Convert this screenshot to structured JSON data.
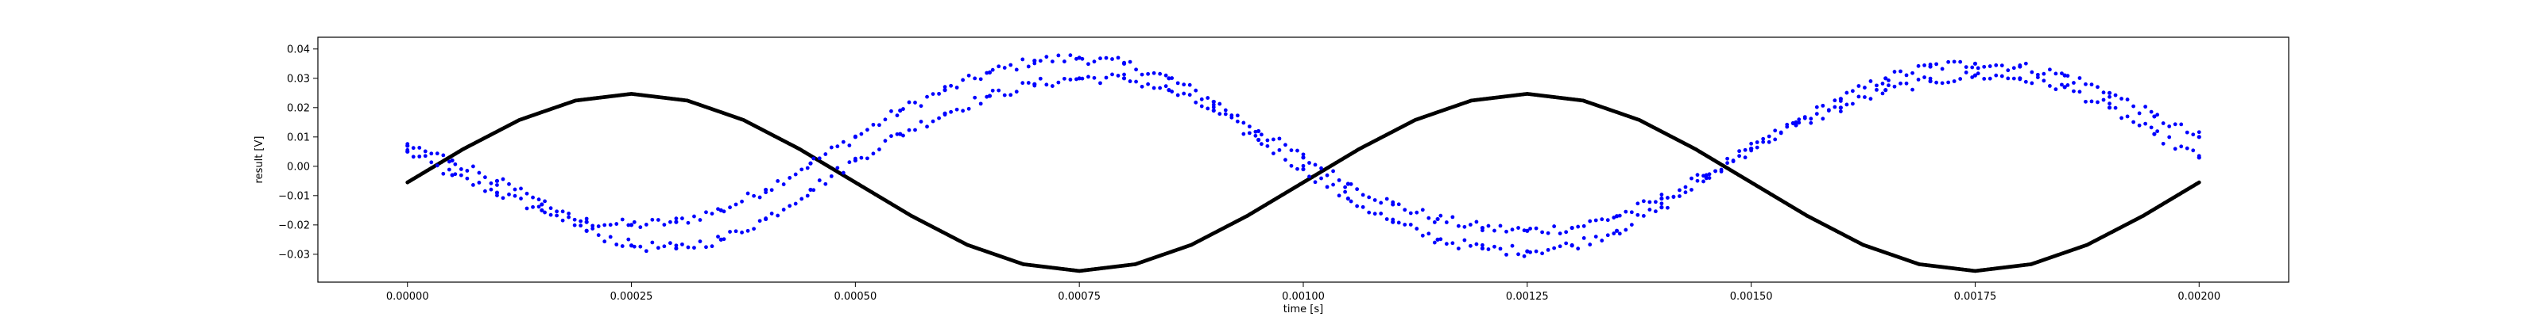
{
  "chart_data": {
    "type": "scatter",
    "title": "",
    "xlabel": "time [s]",
    "ylabel": "result [V]",
    "xlim": [
      -0.0001,
      0.0021
    ],
    "ylim": [
      -0.0395,
      0.044
    ],
    "grid": false,
    "legend": "none",
    "x_ticks": [
      {
        "value": 0.0,
        "label": "0.00000"
      },
      {
        "value": 0.00025,
        "label": "0.00025"
      },
      {
        "value": 0.0005,
        "label": "0.00050"
      },
      {
        "value": 0.00075,
        "label": "0.00075"
      },
      {
        "value": 0.001,
        "label": "0.00100"
      },
      {
        "value": 0.00125,
        "label": "0.00125"
      },
      {
        "value": 0.0015,
        "label": "0.00150"
      },
      {
        "value": 0.00175,
        "label": "0.00175"
      },
      {
        "value": 0.002,
        "label": "0.00200"
      }
    ],
    "y_ticks": [
      {
        "value": 0.04,
        "label": "0.04"
      },
      {
        "value": 0.03,
        "label": "0.03"
      },
      {
        "value": 0.02,
        "label": "0.02"
      },
      {
        "value": 0.01,
        "label": "0.01"
      },
      {
        "value": 0.0,
        "label": "0.00"
      },
      {
        "value": -0.01,
        "label": "−0.01"
      },
      {
        "value": -0.02,
        "label": "−0.02"
      },
      {
        "value": -0.03,
        "label": "−0.03"
      }
    ],
    "series": [
      {
        "color": "#000000",
        "marker": "dot",
        "x": [
          0.0,
          6.25e-05,
          0.000125,
          0.0001875,
          0.00025,
          0.0003125,
          0.000375,
          0.0004375,
          0.0005,
          0.0005625,
          0.000625,
          0.0006875,
          0.00075,
          0.0008125,
          0.000875,
          0.0009375,
          0.001,
          0.0010625,
          0.001125,
          0.0011875,
          0.00125,
          0.0013125,
          0.001375,
          0.0014375,
          0.0015,
          0.0015625,
          0.001625,
          0.0016875,
          0.00175,
          0.0018125,
          0.001875,
          0.0019375,
          0.002
        ],
        "y": [
          -0.0055,
          0.0059,
          0.0158,
          0.0224,
          0.0247,
          0.0224,
          0.0158,
          0.0059,
          -0.0055,
          -0.0169,
          -0.0268,
          -0.0334,
          -0.0357,
          -0.0334,
          -0.0268,
          -0.0169,
          -0.0055,
          0.0059,
          0.0158,
          0.0224,
          0.0247,
          0.0224,
          0.0158,
          0.0059,
          -0.0055,
          -0.0169,
          -0.0268,
          -0.0334,
          -0.0357,
          -0.0334,
          -0.0268,
          -0.0169,
          -0.0055
        ]
      },
      {
        "color": "#0000ff",
        "marker": "dot",
        "x": [
          0.0,
          5e-05,
          0.0001,
          0.00015,
          0.0002,
          0.00025,
          0.0003,
          0.00035,
          0.0004,
          0.00045,
          0.0005,
          0.00055,
          0.0006,
          0.00065,
          0.0007,
          0.00075,
          0.0008,
          0.00085,
          0.0009,
          0.00095,
          0.001,
          0.00105,
          0.0011,
          0.00115,
          0.0012,
          0.00125,
          0.0013,
          0.00135,
          0.0014,
          0.00145,
          0.0015,
          0.00155,
          0.0016,
          0.00165,
          0.0017,
          0.00175,
          0.0018,
          0.00185,
          0.0019,
          0.00195,
          0.002
        ],
        "y": [
          0.005,
          -0.003,
          -0.009,
          -0.015,
          -0.019,
          -0.02,
          -0.019,
          -0.015,
          -0.008,
          0.001,
          0.01,
          0.019,
          0.026,
          0.032,
          0.036,
          0.037,
          0.035,
          0.03,
          0.022,
          0.012,
          0.003,
          -0.006,
          -0.013,
          -0.018,
          -0.021,
          -0.022,
          -0.021,
          -0.017,
          -0.011,
          -0.003,
          0.006,
          0.015,
          0.023,
          0.03,
          0.034,
          0.035,
          0.034,
          0.031,
          0.025,
          0.017,
          0.01
        ]
      },
      {
        "color": "#0000ff",
        "marker": "dot",
        "x": [
          0.0,
          5e-05,
          0.0001,
          0.00015,
          0.0002,
          0.00025,
          0.0003,
          0.00035,
          0.0004,
          0.00045,
          0.0005,
          0.00055,
          0.0006,
          0.00065,
          0.0007,
          0.00075,
          0.0008,
          0.00085,
          0.0009,
          0.00095,
          0.001,
          0.00105,
          0.0011,
          0.00115,
          0.0012,
          0.00125,
          0.0013,
          0.00135,
          0.0014,
          0.00145,
          0.0015,
          0.00155,
          0.0016,
          0.00165,
          0.0017,
          0.00175,
          0.0018,
          0.00185,
          0.0019,
          0.00195,
          0.002
        ],
        "y": [
          0.007,
          0.002,
          -0.005,
          -0.013,
          -0.022,
          -0.027,
          -0.028,
          -0.025,
          -0.018,
          -0.008,
          0.002,
          0.011,
          0.018,
          0.024,
          0.028,
          0.03,
          0.03,
          0.026,
          0.019,
          0.009,
          -0.001,
          -0.011,
          -0.019,
          -0.025,
          -0.028,
          -0.029,
          -0.027,
          -0.022,
          -0.014,
          -0.004,
          0.006,
          0.014,
          0.02,
          0.026,
          0.029,
          0.031,
          0.03,
          0.027,
          0.02,
          0.011,
          0.003
        ]
      }
    ]
  }
}
